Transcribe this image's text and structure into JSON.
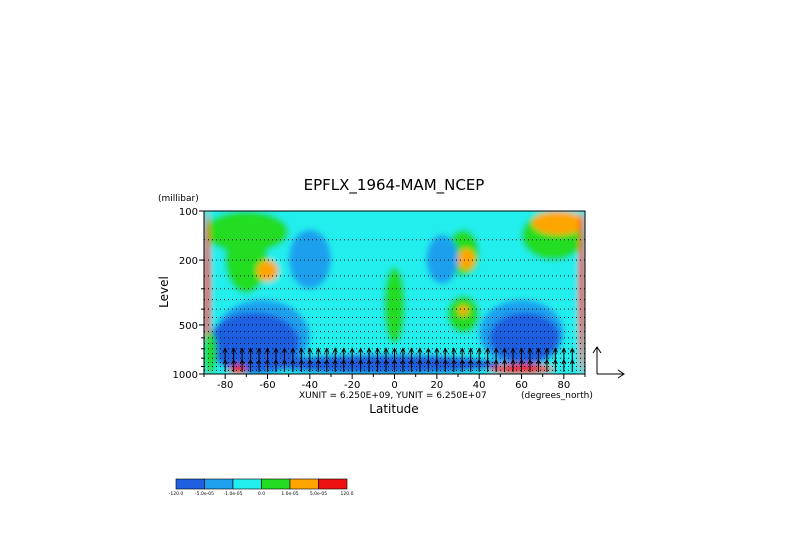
{
  "chart_data": {
    "type": "heatmap",
    "title": "EPFLX_1964-MAM_NCEP",
    "xlabel": "Latitude",
    "ylabel": "Level",
    "yunit": "(millibar)",
    "xunit": "(degrees_north)",
    "vector_units": "XUNIT = 6.250E+09, YUNIT = 6.250E+07",
    "xlim": [
      -90,
      90
    ],
    "ylim": [
      1000,
      100
    ],
    "yscale": "log",
    "x_ticks": [
      -80,
      -60,
      -40,
      -20,
      0,
      20,
      40,
      60,
      80
    ],
    "y_ticks": [
      100,
      200,
      500,
      1000
    ],
    "grid": "dotted horizontal",
    "colorbar": {
      "bins": [
        {
          "color": "#1f5fe0"
        },
        {
          "color": "#1fa0ee"
        },
        {
          "color": "#22eeee"
        },
        {
          "color": "#22dd22"
        },
        {
          "color": "#ffa500"
        },
        {
          "color": "#ee1111"
        }
      ],
      "labels": [
        "-120.0",
        "-5.0e-05",
        "-1.0e-05",
        "0.0",
        "1.0e-05",
        "5.0e-05",
        "120.0"
      ]
    },
    "regions": [
      {
        "class": 2,
        "x": [
          -90,
          90
        ],
        "y": [
          100,
          1000
        ]
      },
      {
        "class": 3,
        "x": [
          -90,
          -50
        ],
        "y": [
          100,
          180
        ]
      },
      {
        "class": 3,
        "x": [
          -80,
          -60
        ],
        "y": [
          120,
          320
        ]
      },
      {
        "class": 4,
        "x": [
          -65,
          -55
        ],
        "y": [
          200,
          270
        ]
      },
      {
        "class": 3,
        "x": [
          25,
          40
        ],
        "y": [
          130,
          250
        ]
      },
      {
        "class": 4,
        "x": [
          30,
          38
        ],
        "y": [
          170,
          230
        ]
      },
      {
        "class": 3,
        "x": [
          25,
          40
        ],
        "y": [
          330,
          560
        ]
      },
      {
        "class": 4,
        "x": [
          30,
          35
        ],
        "y": [
          380,
          440
        ]
      },
      {
        "class": 3,
        "x": [
          -5,
          5
        ],
        "y": [
          220,
          650
        ]
      },
      {
        "class": 3,
        "x": [
          60,
          90
        ],
        "y": [
          100,
          200
        ]
      },
      {
        "class": 4,
        "x": [
          65,
          90
        ],
        "y": [
          100,
          140
        ]
      },
      {
        "class": 1,
        "x": [
          -85,
          -40
        ],
        "y": [
          350,
          1000
        ]
      },
      {
        "class": 1,
        "x": [
          40,
          80
        ],
        "y": [
          350,
          900
        ]
      },
      {
        "class": 1,
        "x": [
          -50,
          -30
        ],
        "y": [
          130,
          300
        ]
      },
      {
        "class": 1,
        "x": [
          15,
          30
        ],
        "y": [
          140,
          280
        ]
      },
      {
        "class": 0,
        "x": [
          -88,
          -45
        ],
        "y": [
          420,
          1000
        ]
      },
      {
        "class": 0,
        "x": [
          45,
          78
        ],
        "y": [
          420,
          860
        ]
      },
      {
        "class": 0,
        "x": [
          -60,
          50
        ],
        "y": [
          760,
          1000
        ]
      },
      {
        "class": 5,
        "x": [
          -90,
          -87
        ],
        "y": [
          100,
          1000
        ]
      },
      {
        "class": 5,
        "x": [
          87,
          90
        ],
        "y": [
          100,
          1000
        ]
      },
      {
        "class": 5,
        "x": [
          -78,
          -70
        ],
        "y": [
          880,
          1000
        ]
      },
      {
        "class": 5,
        "x": [
          45,
          75
        ],
        "y": [
          870,
          1000
        ]
      },
      {
        "class": 3,
        "x": [
          -90,
          -84
        ],
        "y": [
          550,
          1000
        ]
      }
    ],
    "vectors": {
      "x": [
        -80,
        -76,
        -72,
        -68,
        -64,
        -60,
        -56,
        -52,
        -48,
        -44,
        -40,
        -36,
        -32,
        -28,
        -24,
        -20,
        -16,
        -12,
        -8,
        -4,
        0,
        4,
        8,
        12,
        16,
        20,
        24,
        28,
        32,
        36,
        40,
        44,
        48,
        52,
        56,
        60,
        64,
        68,
        72,
        76,
        80,
        84
      ],
      "levels": [
        1000,
        850
      ],
      "dy": 1
    },
    "reference_vector": {
      "x": 0.8,
      "y": 1
    }
  }
}
